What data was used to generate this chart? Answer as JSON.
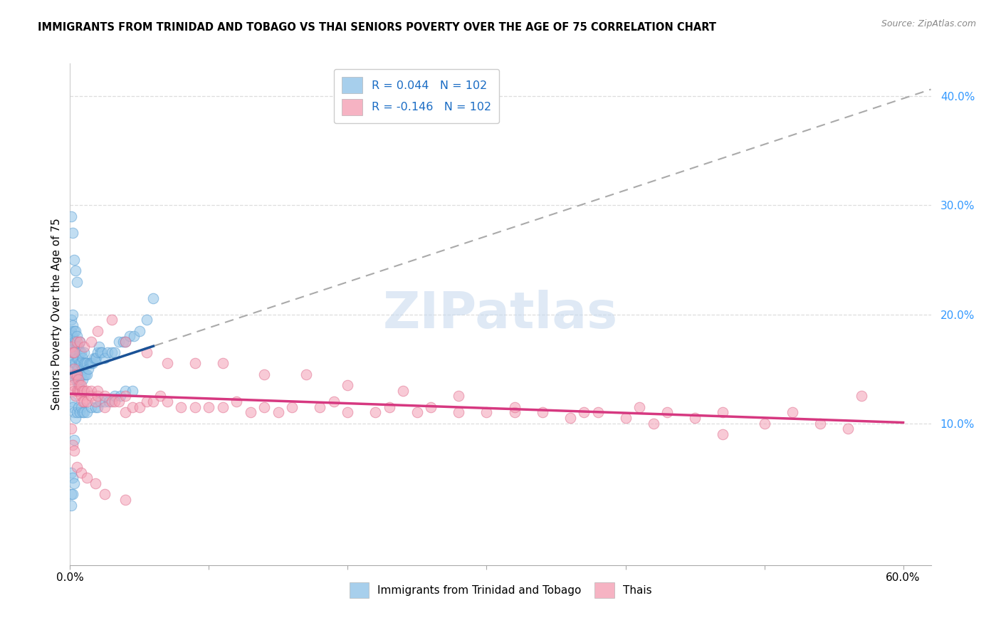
{
  "title": "IMMIGRANTS FROM TRINIDAD AND TOBAGO VS THAI SENIORS POVERTY OVER THE AGE OF 75 CORRELATION CHART",
  "source": "Source: ZipAtlas.com",
  "ylabel": "Seniors Poverty Over the Age of 75",
  "xlim": [
    0.0,
    0.62
  ],
  "ylim": [
    -0.03,
    0.43
  ],
  "right_yticks": [
    0.1,
    0.2,
    0.3,
    0.4
  ],
  "right_yticklabels": [
    "10.0%",
    "20.0%",
    "30.0%",
    "40.0%"
  ],
  "bottom_xticks": [
    0.0,
    0.1,
    0.2,
    0.3,
    0.4,
    0.5,
    0.6
  ],
  "bottom_xticklabels": [
    "0.0%",
    "",
    "",
    "",
    "",
    "",
    "60.0%"
  ],
  "legend_label1": "Immigrants from Trinidad and Tobago",
  "legend_label2": "Thais",
  "blue_color": "#91c4e8",
  "pink_color": "#f4a0b5",
  "trend_blue_color": "#1a5296",
  "trend_pink_color": "#d63880",
  "trend_dashed_color": "#aaaaaa",
  "watermark": "ZIPatlas",
  "R1": 0.044,
  "R2": -0.146,
  "N1": 102,
  "N2": 102,
  "blue_x": [
    0.001,
    0.001,
    0.001,
    0.001,
    0.002,
    0.002,
    0.002,
    0.002,
    0.002,
    0.003,
    0.003,
    0.003,
    0.003,
    0.003,
    0.004,
    0.004,
    0.004,
    0.004,
    0.004,
    0.005,
    0.005,
    0.005,
    0.005,
    0.005,
    0.006,
    0.006,
    0.006,
    0.006,
    0.007,
    0.007,
    0.007,
    0.007,
    0.008,
    0.008,
    0.008,
    0.009,
    0.009,
    0.009,
    0.01,
    0.01,
    0.01,
    0.011,
    0.011,
    0.012,
    0.012,
    0.013,
    0.014,
    0.015,
    0.016,
    0.017,
    0.018,
    0.019,
    0.02,
    0.021,
    0.022,
    0.023,
    0.025,
    0.027,
    0.03,
    0.032,
    0.035,
    0.038,
    0.04,
    0.043,
    0.046,
    0.05,
    0.055,
    0.06,
    0.001,
    0.002,
    0.003,
    0.004,
    0.005,
    0.006,
    0.007,
    0.008,
    0.009,
    0.01,
    0.012,
    0.015,
    0.018,
    0.02,
    0.022,
    0.025,
    0.028,
    0.032,
    0.036,
    0.04,
    0.045,
    0.001,
    0.002,
    0.003,
    0.004,
    0.005,
    0.001,
    0.002,
    0.003,
    0.001,
    0.002,
    0.001,
    0.003,
    0.002
  ],
  "blue_y": [
    0.165,
    0.175,
    0.185,
    0.195,
    0.15,
    0.16,
    0.17,
    0.18,
    0.19,
    0.145,
    0.155,
    0.165,
    0.175,
    0.185,
    0.14,
    0.155,
    0.165,
    0.175,
    0.185,
    0.14,
    0.15,
    0.16,
    0.17,
    0.18,
    0.135,
    0.15,
    0.16,
    0.17,
    0.145,
    0.155,
    0.165,
    0.175,
    0.145,
    0.155,
    0.165,
    0.14,
    0.15,
    0.16,
    0.145,
    0.155,
    0.165,
    0.145,
    0.155,
    0.145,
    0.155,
    0.15,
    0.155,
    0.155,
    0.155,
    0.16,
    0.16,
    0.16,
    0.165,
    0.17,
    0.165,
    0.165,
    0.16,
    0.165,
    0.165,
    0.165,
    0.175,
    0.175,
    0.175,
    0.18,
    0.18,
    0.185,
    0.195,
    0.215,
    0.12,
    0.115,
    0.11,
    0.105,
    0.11,
    0.115,
    0.11,
    0.115,
    0.11,
    0.11,
    0.11,
    0.115,
    0.115,
    0.115,
    0.12,
    0.12,
    0.12,
    0.125,
    0.125,
    0.13,
    0.13,
    0.29,
    0.275,
    0.25,
    0.24,
    0.23,
    0.055,
    0.05,
    0.045,
    0.035,
    0.035,
    0.025,
    0.085,
    0.2
  ],
  "pink_x": [
    0.001,
    0.002,
    0.003,
    0.003,
    0.004,
    0.004,
    0.005,
    0.005,
    0.006,
    0.006,
    0.007,
    0.007,
    0.008,
    0.008,
    0.009,
    0.009,
    0.01,
    0.01,
    0.012,
    0.012,
    0.015,
    0.015,
    0.018,
    0.02,
    0.02,
    0.025,
    0.025,
    0.03,
    0.032,
    0.035,
    0.04,
    0.04,
    0.045,
    0.05,
    0.055,
    0.06,
    0.065,
    0.07,
    0.08,
    0.09,
    0.1,
    0.11,
    0.12,
    0.13,
    0.14,
    0.15,
    0.16,
    0.18,
    0.19,
    0.2,
    0.22,
    0.23,
    0.25,
    0.26,
    0.28,
    0.3,
    0.32,
    0.34,
    0.36,
    0.38,
    0.4,
    0.41,
    0.43,
    0.45,
    0.47,
    0.5,
    0.52,
    0.54,
    0.56,
    0.57,
    0.001,
    0.002,
    0.003,
    0.005,
    0.007,
    0.01,
    0.015,
    0.02,
    0.03,
    0.04,
    0.055,
    0.07,
    0.09,
    0.11,
    0.14,
    0.17,
    0.2,
    0.24,
    0.28,
    0.32,
    0.37,
    0.42,
    0.47,
    0.001,
    0.002,
    0.003,
    0.005,
    0.008,
    0.012,
    0.018,
    0.025,
    0.04
  ],
  "pink_y": [
    0.14,
    0.135,
    0.13,
    0.15,
    0.125,
    0.145,
    0.13,
    0.145,
    0.13,
    0.14,
    0.13,
    0.135,
    0.125,
    0.135,
    0.12,
    0.13,
    0.12,
    0.13,
    0.12,
    0.13,
    0.125,
    0.13,
    0.12,
    0.125,
    0.13,
    0.115,
    0.125,
    0.12,
    0.12,
    0.12,
    0.11,
    0.125,
    0.115,
    0.115,
    0.12,
    0.12,
    0.125,
    0.12,
    0.115,
    0.115,
    0.115,
    0.115,
    0.12,
    0.11,
    0.115,
    0.11,
    0.115,
    0.115,
    0.12,
    0.11,
    0.11,
    0.115,
    0.11,
    0.115,
    0.11,
    0.11,
    0.11,
    0.11,
    0.105,
    0.11,
    0.105,
    0.115,
    0.11,
    0.105,
    0.11,
    0.1,
    0.11,
    0.1,
    0.095,
    0.125,
    0.17,
    0.165,
    0.165,
    0.175,
    0.175,
    0.17,
    0.175,
    0.185,
    0.195,
    0.175,
    0.165,
    0.155,
    0.155,
    0.155,
    0.145,
    0.145,
    0.135,
    0.13,
    0.125,
    0.115,
    0.11,
    0.1,
    0.09,
    0.095,
    0.08,
    0.075,
    0.06,
    0.055,
    0.05,
    0.045,
    0.035,
    0.03
  ]
}
